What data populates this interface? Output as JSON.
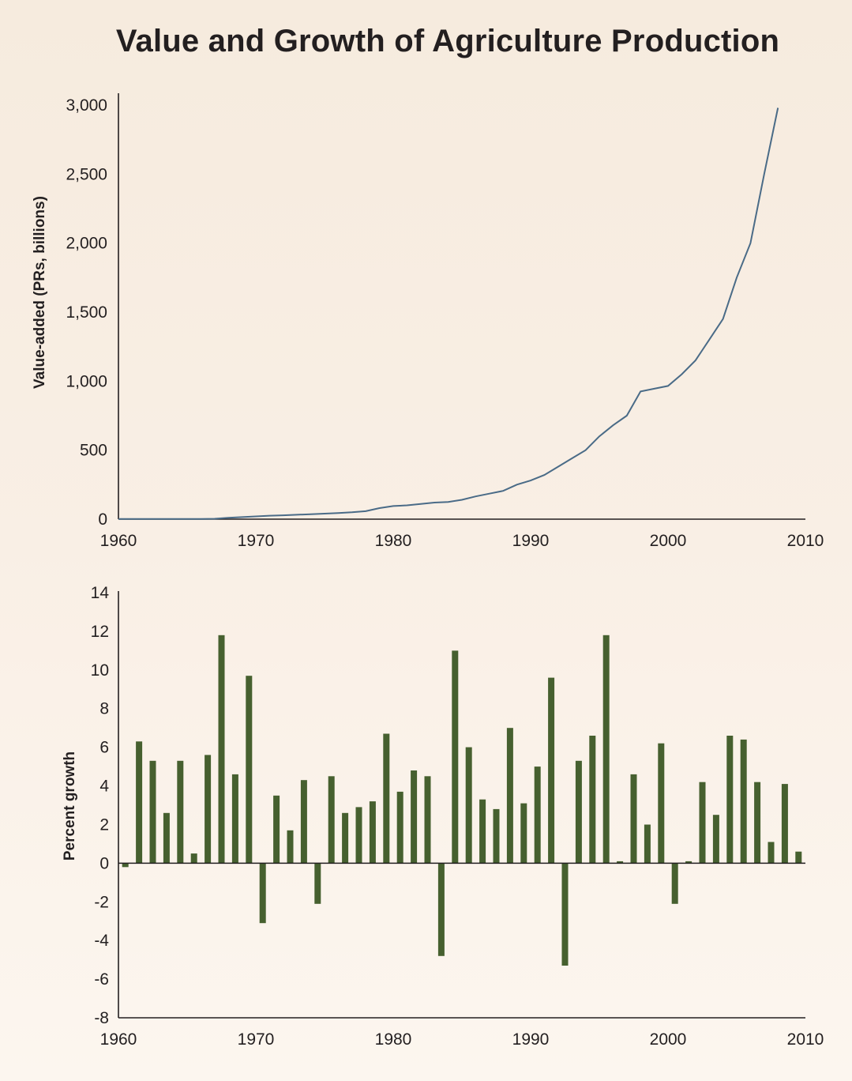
{
  "title": "Value and Growth of Agriculture Production",
  "colors": {
    "line": "#4a6b87",
    "bars": "#46602f",
    "background": "#f7ecdf"
  },
  "chart_data": [
    {
      "type": "line",
      "title": "",
      "xlabel": "",
      "ylabel": "Value-added (PRs, billions)",
      "xlim": [
        1960,
        2010
      ],
      "ylim": [
        0,
        3000
      ],
      "x_ticks": [
        "1960",
        "1970",
        "1980",
        "1990",
        "2000",
        "2010"
      ],
      "y_ticks": [
        "0",
        "500",
        "1,000",
        "1,500",
        "2,000",
        "2,500",
        "3,000"
      ],
      "grid": false,
      "series": [
        {
          "x": [
            1960,
            1961,
            1962,
            1963,
            1964,
            1965,
            1966,
            1967,
            1968,
            1969,
            1970,
            1971,
            1972,
            1973,
            1974,
            1975,
            1976,
            1977,
            1978,
            1979,
            1980,
            1981,
            1982,
            1983,
            1984,
            1985,
            1986,
            1987,
            1988,
            1989,
            1990,
            1991,
            1992,
            1993,
            1994,
            1995,
            1996,
            1997,
            1998,
            1999,
            2000,
            2001,
            2002,
            2003,
            2004,
            2005,
            2006,
            2007,
            2008
          ],
          "y": [
            2,
            2,
            2,
            2,
            2,
            2,
            2,
            3,
            10,
            15,
            20,
            25,
            28,
            32,
            36,
            40,
            44,
            50,
            58,
            80,
            95,
            100,
            110,
            120,
            125,
            140,
            165,
            185,
            205,
            250,
            280,
            320,
            380,
            440,
            500,
            600,
            680,
            750,
            925,
            945,
            965,
            1050,
            1150,
            1300,
            1450,
            1750,
            2000,
            2500,
            2980
          ]
        }
      ]
    },
    {
      "type": "bar",
      "title": "",
      "xlabel": "",
      "ylabel": "Percent growth",
      "xlim": [
        1960,
        2010
      ],
      "ylim": [
        -8,
        14
      ],
      "x_ticks": [
        "1960",
        "1970",
        "1980",
        "1990",
        "2000",
        "2010"
      ],
      "y_ticks": [
        "-8",
        "-6",
        "-4",
        "-2",
        "0",
        "2",
        "4",
        "6",
        "8",
        "10",
        "12",
        "14"
      ],
      "grid": false,
      "x": [
        1961,
        1962,
        1963,
        1964,
        1965,
        1966,
        1967,
        1968,
        1969,
        1970,
        1971,
        1972,
        1973,
        1974,
        1975,
        1976,
        1977,
        1978,
        1979,
        1980,
        1981,
        1982,
        1983,
        1984,
        1985,
        1986,
        1987,
        1988,
        1989,
        1990,
        1991,
        1992,
        1993,
        1994,
        1995,
        1996,
        1997,
        1998,
        1999,
        2000,
        2001,
        2002,
        2003,
        2004,
        2005,
        2006,
        2007,
        2008,
        2009,
        2010
      ],
      "values": [
        -0.2,
        6.3,
        5.3,
        2.6,
        5.3,
        0.5,
        5.6,
        11.8,
        4.6,
        9.7,
        -3.1,
        3.5,
        1.7,
        4.3,
        -2.1,
        4.5,
        2.6,
        2.9,
        3.2,
        6.7,
        3.7,
        4.8,
        4.5,
        -4.8,
        11.0,
        6.0,
        3.3,
        2.8,
        7.0,
        3.1,
        5.0,
        9.6,
        -5.3,
        5.3,
        6.6,
        11.8,
        0.1,
        4.6,
        2.0,
        6.2,
        -2.1,
        0.1,
        4.2,
        2.5,
        6.6,
        6.4,
        4.2,
        1.1,
        4.1,
        0.6
      ]
    }
  ]
}
